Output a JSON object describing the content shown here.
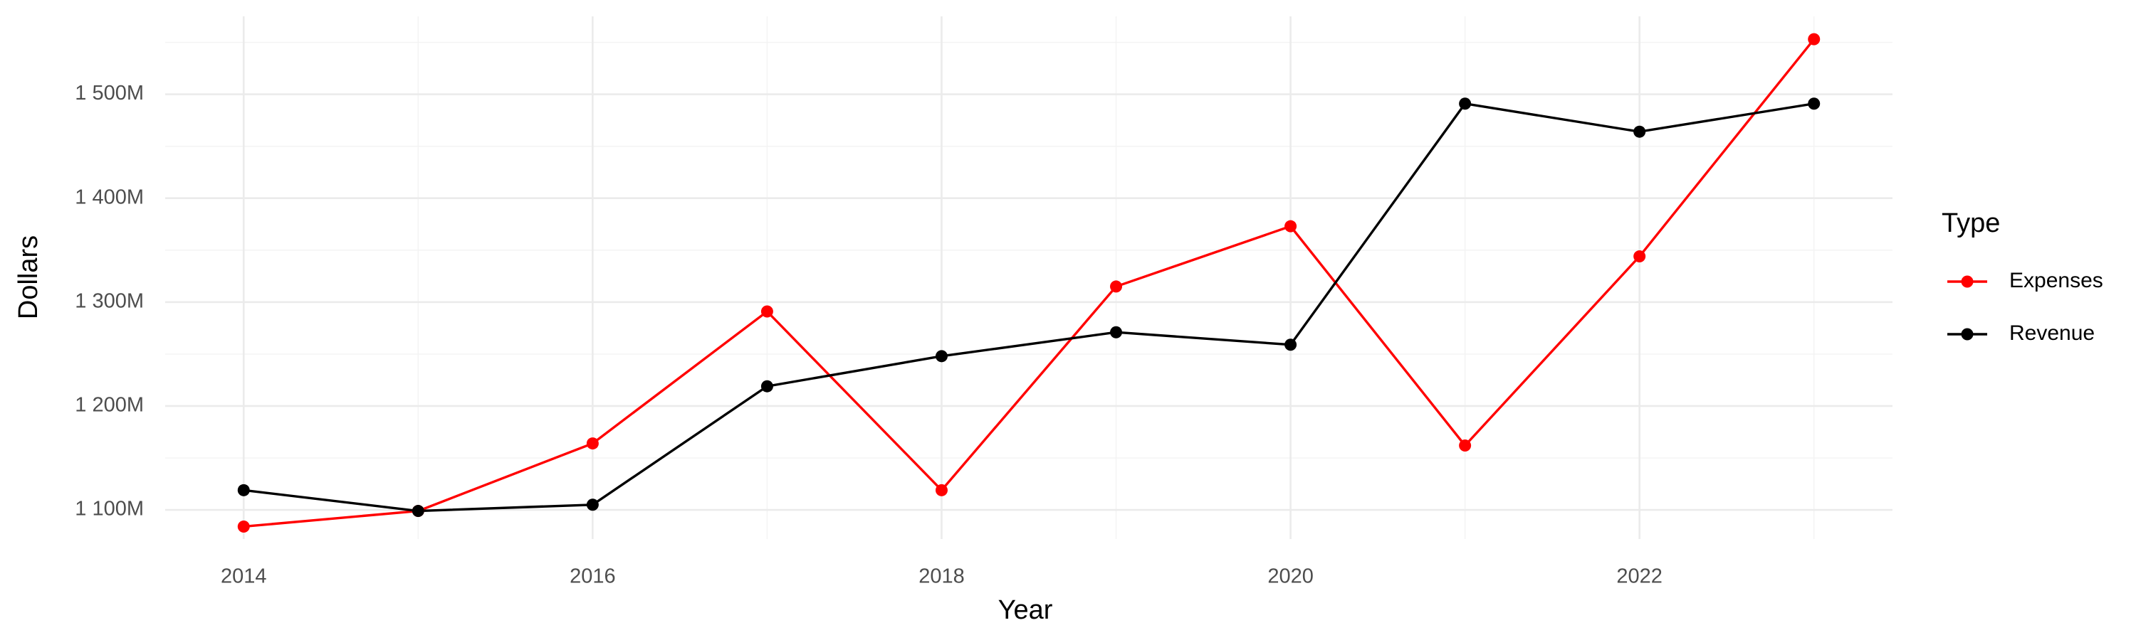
{
  "chart_data": {
    "type": "line",
    "x_label": "Year",
    "y_label": "Dollars",
    "x": [
      2014,
      2015,
      2016,
      2017,
      2018,
      2019,
      2020,
      2021,
      2022,
      2023
    ],
    "series": [
      {
        "name": "Expenses",
        "color": "#ff0000",
        "values": [
          1084000000,
          1099000000,
          1164000000,
          1291000000,
          1119000000,
          1315000000,
          1373000000,
          1162000000,
          1344000000,
          1553000000
        ]
      },
      {
        "name": "Revenue",
        "color": "#000000",
        "values": [
          1119000000,
          1099000000,
          1105000000,
          1219000000,
          1248000000,
          1271000000,
          1259000000,
          1491000000,
          1464000000,
          1491000000
        ]
      }
    ],
    "xlim": [
      2013.55,
      2023.45
    ],
    "xticks": [
      2014,
      2016,
      2018,
      2020,
      2022
    ],
    "ylim": [
      1072000000,
      1575000000
    ],
    "yticks": [
      {
        "value": 1100000000,
        "label": "1 100M"
      },
      {
        "value": 1200000000,
        "label": "1 200M"
      },
      {
        "value": 1300000000,
        "label": "1 300M"
      },
      {
        "value": 1400000000,
        "label": "1 400M"
      },
      {
        "value": 1500000000,
        "label": "1 500M"
      }
    ],
    "grid": true,
    "legend": {
      "title": "Type",
      "position": "right"
    }
  }
}
